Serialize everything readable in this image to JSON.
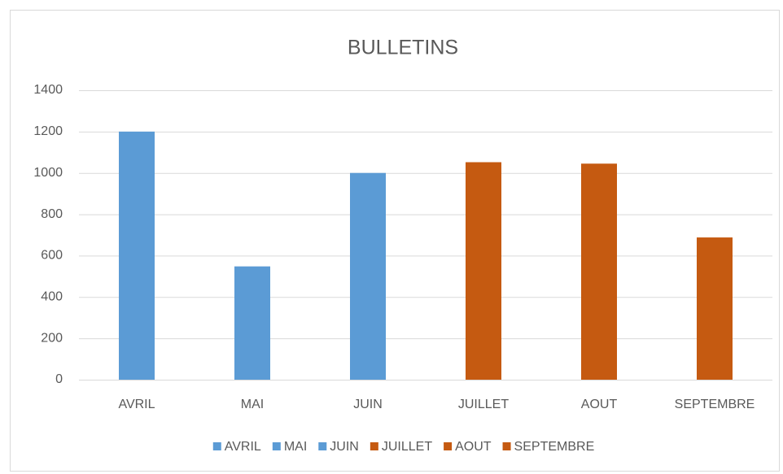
{
  "chart_data": {
    "type": "bar",
    "title": "BULLETINS",
    "categories": [
      "AVRIL",
      "MAI",
      "JUIN",
      "JUILLET",
      "AOUT",
      "SEPTEMBRE"
    ],
    "values": [
      1200,
      548,
      1000,
      1052,
      1045,
      688
    ],
    "colors": [
      "#5b9bd5",
      "#5b9bd5",
      "#5b9bd5",
      "#c55a11",
      "#c55a11",
      "#c55a11"
    ],
    "ylim": [
      0,
      1400
    ],
    "yticks": [
      0,
      200,
      400,
      600,
      800,
      1000,
      1200,
      1400
    ],
    "grid": true,
    "legend": "bottom"
  }
}
